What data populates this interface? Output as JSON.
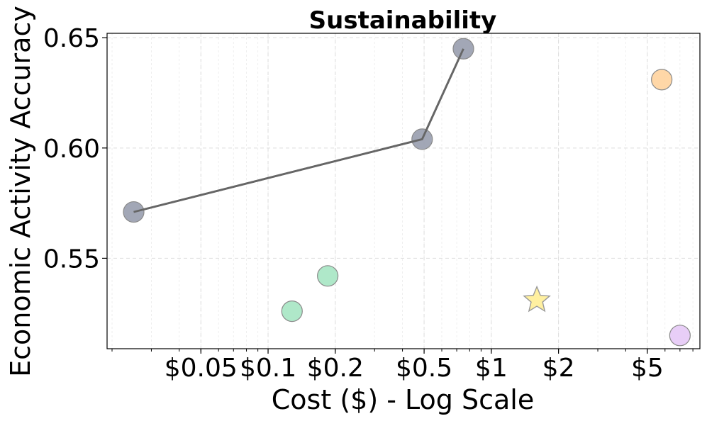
{
  "chart_data": {
    "type": "scatter",
    "title": "Sustainability",
    "xlabel": "Cost ($) - Log Scale",
    "ylabel": "Economic Activity Accuracy",
    "x_scale": "log",
    "xlim": [
      0.019,
      8.6
    ],
    "ylim": [
      0.509,
      0.652
    ],
    "grid": true,
    "x_ticks": [
      {
        "value": 0.05,
        "label": "$0.05"
      },
      {
        "value": 0.1,
        "label": "$0.1"
      },
      {
        "value": 0.2,
        "label": "$0.2"
      },
      {
        "value": 0.5,
        "label": "$0.5"
      },
      {
        "value": 1,
        "label": "$1"
      },
      {
        "value": 2,
        "label": "$2"
      },
      {
        "value": 5,
        "label": "$5"
      }
    ],
    "y_ticks": [
      {
        "value": 0.55,
        "label": "0.55"
      },
      {
        "value": 0.6,
        "label": "0.60"
      },
      {
        "value": 0.65,
        "label": "0.65"
      }
    ],
    "frontier": {
      "color": "#666666",
      "points": [
        {
          "x": 0.025,
          "y": 0.571
        },
        {
          "x": 0.49,
          "y": 0.604
        },
        {
          "x": 0.75,
          "y": 0.645
        }
      ]
    },
    "points": [
      {
        "x": 0.025,
        "y": 0.571,
        "color": "#9aa0b0",
        "marker": "circle"
      },
      {
        "x": 0.49,
        "y": 0.604,
        "color": "#9aa0b0",
        "marker": "circle"
      },
      {
        "x": 0.75,
        "y": 0.645,
        "color": "#9aa0b0",
        "marker": "circle"
      },
      {
        "x": 0.128,
        "y": 0.526,
        "color": "#a8e6c4",
        "marker": "circle"
      },
      {
        "x": 0.185,
        "y": 0.542,
        "color": "#a8e6c4",
        "marker": "circle"
      },
      {
        "x": 1.6,
        "y": 0.531,
        "color": "#fff0a0",
        "marker": "star"
      },
      {
        "x": 5.8,
        "y": 0.631,
        "color": "#ffd4a0",
        "marker": "circle"
      },
      {
        "x": 7.0,
        "y": 0.515,
        "color": "#e6caf6",
        "marker": "circle"
      }
    ]
  }
}
